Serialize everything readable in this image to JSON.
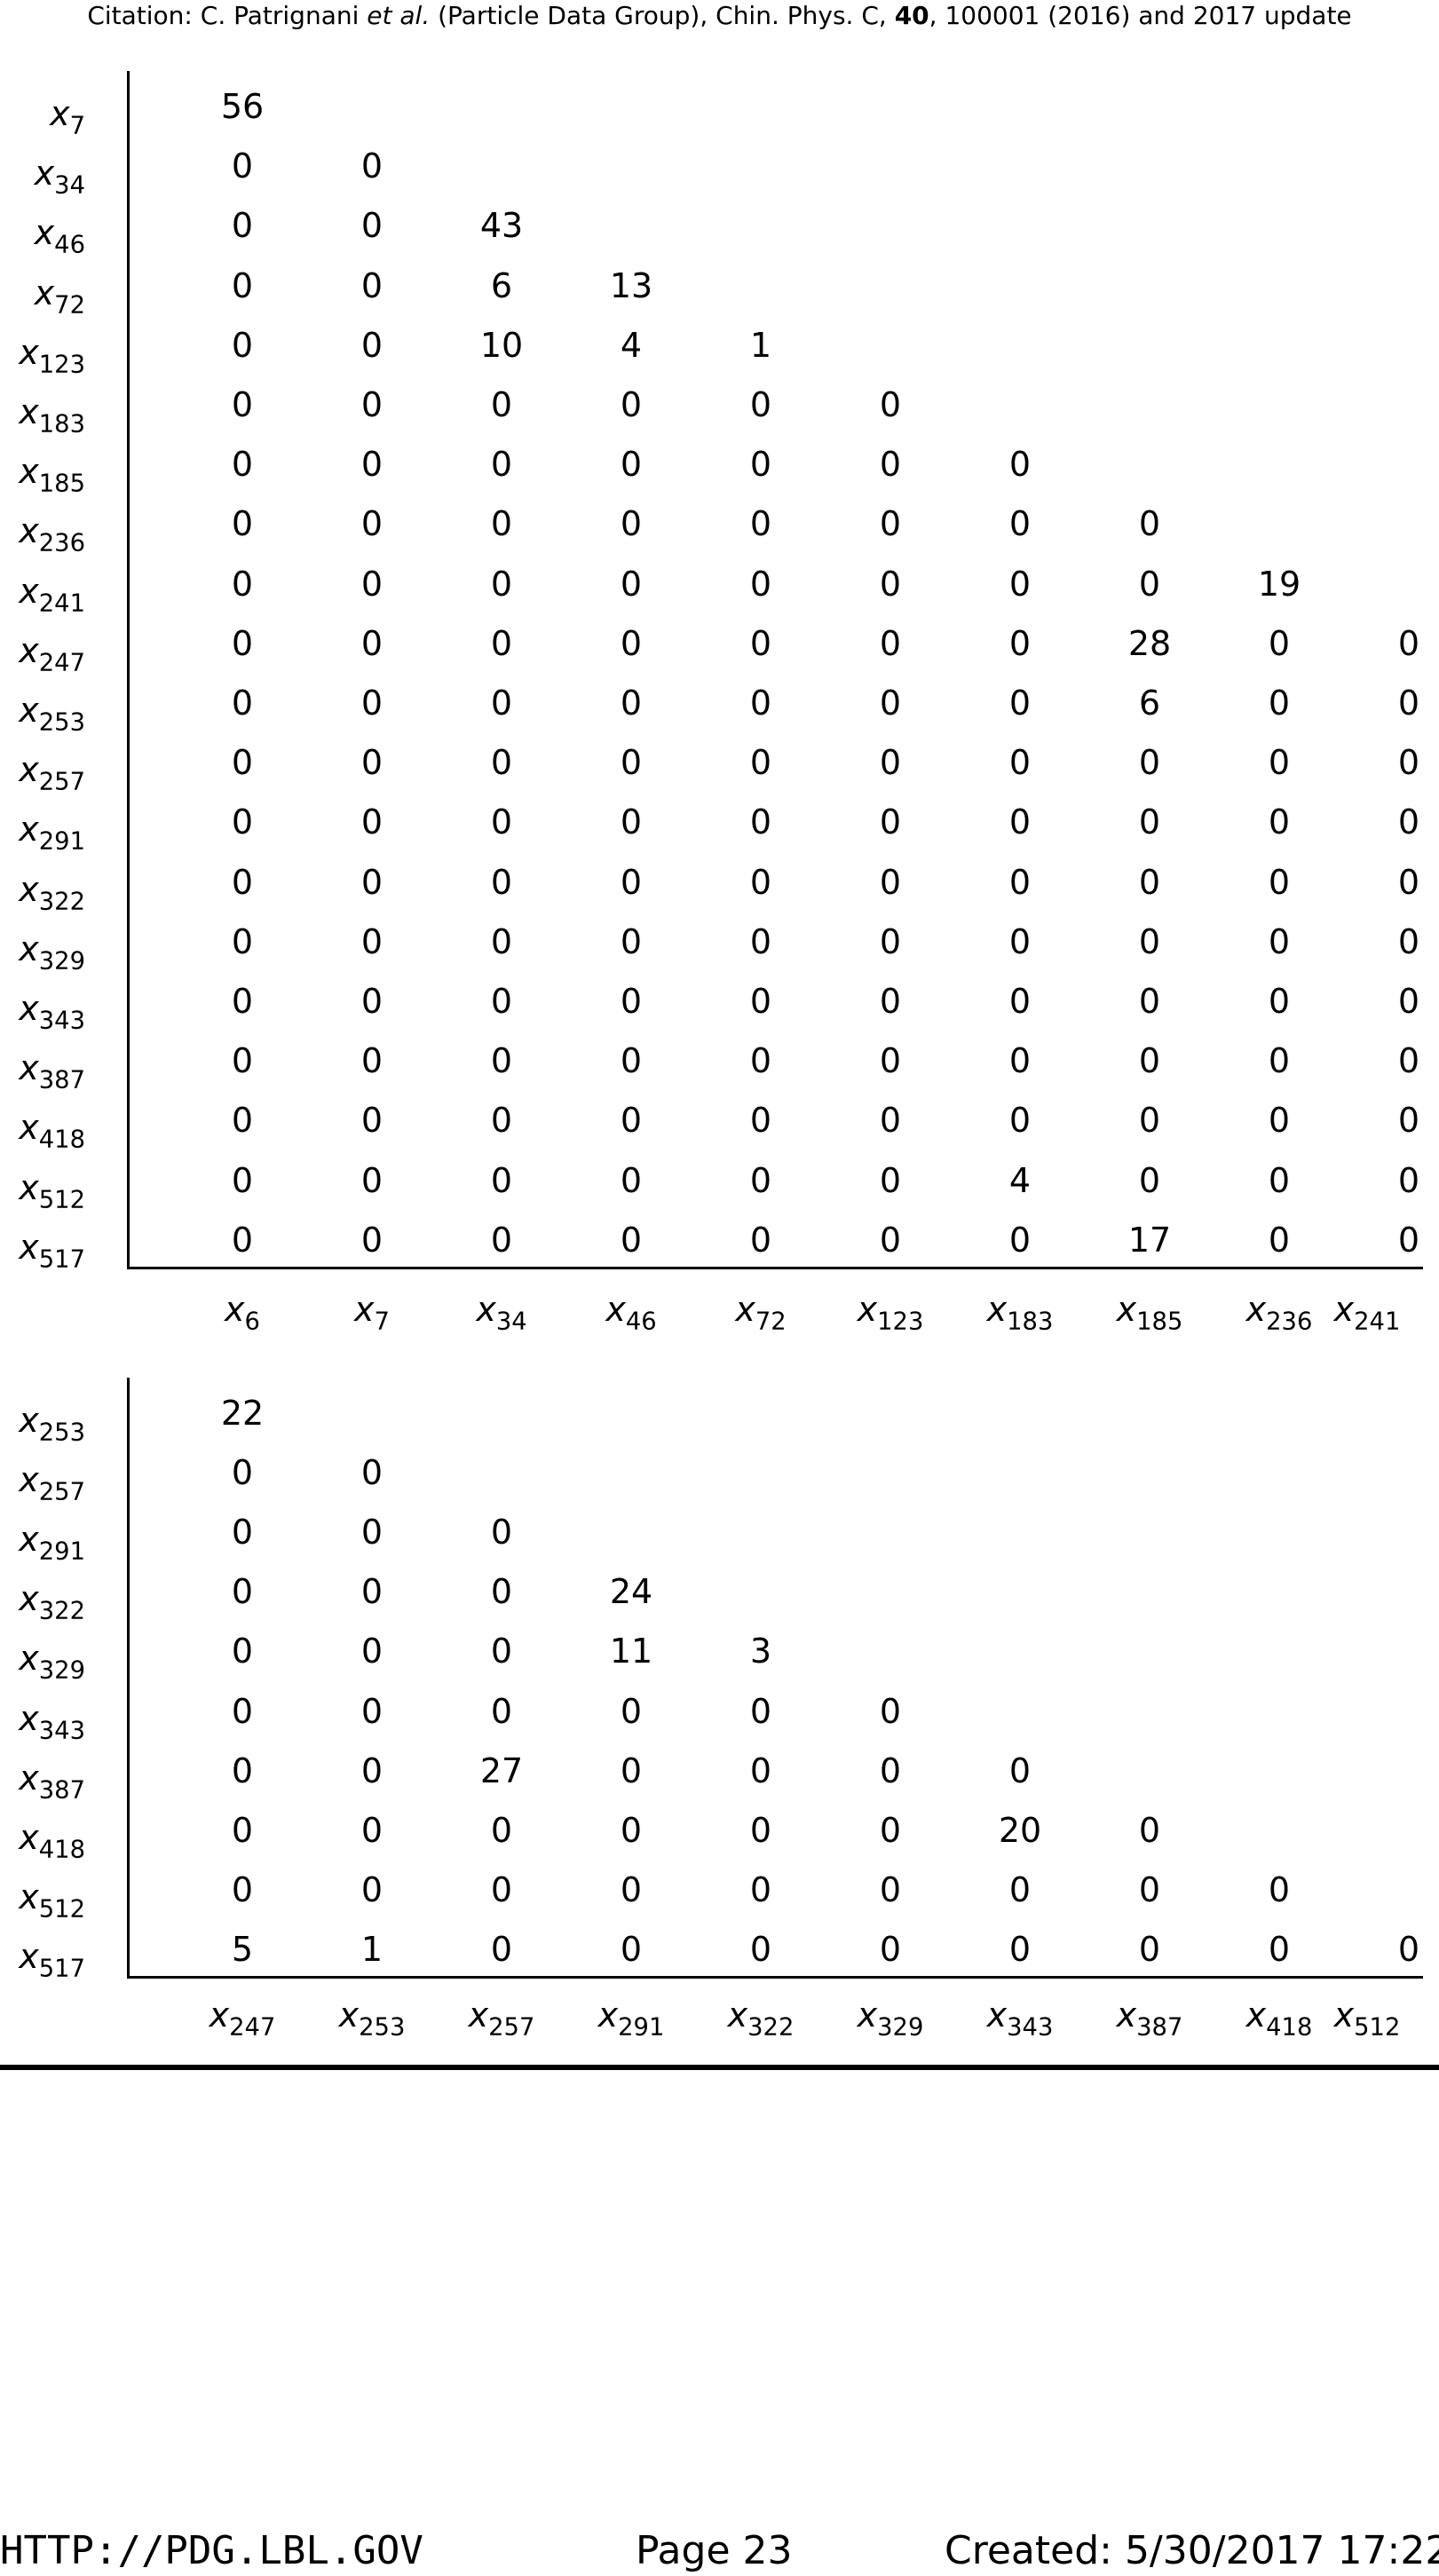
{
  "header": {
    "citation_prefix": "Citation: C. Patrignani ",
    "citation_et_al": "et al.",
    "citation_mid": " (Particle Data Group), Chin. Phys. C, ",
    "citation_volume": "40",
    "citation_suffix": ", 100001 (2016) and 2017 update"
  },
  "matrices": [
    {
      "rows": [
        {
          "label": "x",
          "sub": "7",
          "values": [
            "56"
          ]
        },
        {
          "label": "x",
          "sub": "34",
          "values": [
            "0",
            "0"
          ]
        },
        {
          "label": "x",
          "sub": "46",
          "values": [
            "0",
            "0",
            "43"
          ]
        },
        {
          "label": "x",
          "sub": "72",
          "values": [
            "0",
            "0",
            "6",
            "13"
          ]
        },
        {
          "label": "x",
          "sub": "123",
          "values": [
            "0",
            "0",
            "10",
            "4",
            "1"
          ]
        },
        {
          "label": "x",
          "sub": "183",
          "values": [
            "0",
            "0",
            "0",
            "0",
            "0",
            "0"
          ]
        },
        {
          "label": "x",
          "sub": "185",
          "values": [
            "0",
            "0",
            "0",
            "0",
            "0",
            "0",
            "0"
          ]
        },
        {
          "label": "x",
          "sub": "236",
          "values": [
            "0",
            "0",
            "0",
            "0",
            "0",
            "0",
            "0",
            "0"
          ]
        },
        {
          "label": "x",
          "sub": "241",
          "values": [
            "0",
            "0",
            "0",
            "0",
            "0",
            "0",
            "0",
            "0",
            "19"
          ]
        },
        {
          "label": "x",
          "sub": "247",
          "values": [
            "0",
            "0",
            "0",
            "0",
            "0",
            "0",
            "0",
            "28",
            "0",
            "0"
          ]
        },
        {
          "label": "x",
          "sub": "253",
          "values": [
            "0",
            "0",
            "0",
            "0",
            "0",
            "0",
            "0",
            "6",
            "0",
            "0"
          ]
        },
        {
          "label": "x",
          "sub": "257",
          "values": [
            "0",
            "0",
            "0",
            "0",
            "0",
            "0",
            "0",
            "0",
            "0",
            "0"
          ]
        },
        {
          "label": "x",
          "sub": "291",
          "values": [
            "0",
            "0",
            "0",
            "0",
            "0",
            "0",
            "0",
            "0",
            "0",
            "0"
          ]
        },
        {
          "label": "x",
          "sub": "322",
          "values": [
            "0",
            "0",
            "0",
            "0",
            "0",
            "0",
            "0",
            "0",
            "0",
            "0"
          ]
        },
        {
          "label": "x",
          "sub": "329",
          "values": [
            "0",
            "0",
            "0",
            "0",
            "0",
            "0",
            "0",
            "0",
            "0",
            "0"
          ]
        },
        {
          "label": "x",
          "sub": "343",
          "values": [
            "0",
            "0",
            "0",
            "0",
            "0",
            "0",
            "0",
            "0",
            "0",
            "0"
          ]
        },
        {
          "label": "x",
          "sub": "387",
          "values": [
            "0",
            "0",
            "0",
            "0",
            "0",
            "0",
            "0",
            "0",
            "0",
            "0"
          ]
        },
        {
          "label": "x",
          "sub": "418",
          "values": [
            "0",
            "0",
            "0",
            "0",
            "0",
            "0",
            "0",
            "0",
            "0",
            "0"
          ]
        },
        {
          "label": "x",
          "sub": "512",
          "values": [
            "0",
            "0",
            "0",
            "0",
            "0",
            "0",
            "4",
            "0",
            "0",
            "0"
          ]
        },
        {
          "label": "x",
          "sub": "517",
          "values": [
            "0",
            "0",
            "0",
            "0",
            "0",
            "0",
            "0",
            "17",
            "0",
            "0"
          ]
        }
      ],
      "columns": [
        {
          "label": "x",
          "sub": "6"
        },
        {
          "label": "x",
          "sub": "7"
        },
        {
          "label": "x",
          "sub": "34"
        },
        {
          "label": "x",
          "sub": "46"
        },
        {
          "label": "x",
          "sub": "72"
        },
        {
          "label": "x",
          "sub": "123"
        },
        {
          "label": "x",
          "sub": "183"
        },
        {
          "label": "x",
          "sub": "185"
        },
        {
          "label": "x",
          "sub": "236"
        },
        {
          "label": "x",
          "sub": "241"
        }
      ]
    },
    {
      "rows": [
        {
          "label": "x",
          "sub": "253",
          "values": [
            "22"
          ]
        },
        {
          "label": "x",
          "sub": "257",
          "values": [
            "0",
            "0"
          ]
        },
        {
          "label": "x",
          "sub": "291",
          "values": [
            "0",
            "0",
            "0"
          ]
        },
        {
          "label": "x",
          "sub": "322",
          "values": [
            "0",
            "0",
            "0",
            "24"
          ]
        },
        {
          "label": "x",
          "sub": "329",
          "values": [
            "0",
            "0",
            "0",
            "11",
            "3"
          ]
        },
        {
          "label": "x",
          "sub": "343",
          "values": [
            "0",
            "0",
            "0",
            "0",
            "0",
            "0"
          ]
        },
        {
          "label": "x",
          "sub": "387",
          "values": [
            "0",
            "0",
            "27",
            "0",
            "0",
            "0",
            "0"
          ]
        },
        {
          "label": "x",
          "sub": "418",
          "values": [
            "0",
            "0",
            "0",
            "0",
            "0",
            "0",
            "20",
            "0"
          ]
        },
        {
          "label": "x",
          "sub": "512",
          "values": [
            "0",
            "0",
            "0",
            "0",
            "0",
            "0",
            "0",
            "0",
            "0"
          ]
        },
        {
          "label": "x",
          "sub": "517",
          "values": [
            "5",
            "1",
            "0",
            "0",
            "0",
            "0",
            "0",
            "0",
            "0",
            "0"
          ]
        }
      ],
      "columns": [
        {
          "label": "x",
          "sub": "247"
        },
        {
          "label": "x",
          "sub": "253"
        },
        {
          "label": "x",
          "sub": "257"
        },
        {
          "label": "x",
          "sub": "291"
        },
        {
          "label": "x",
          "sub": "322"
        },
        {
          "label": "x",
          "sub": "329"
        },
        {
          "label": "x",
          "sub": "343"
        },
        {
          "label": "x",
          "sub": "387"
        },
        {
          "label": "x",
          "sub": "418"
        },
        {
          "label": "x",
          "sub": "512"
        }
      ]
    }
  ],
  "footer": {
    "url": "HTTP://PDG.LBL.GOV",
    "page": "Page 23",
    "created": "Created: 5/30/2017 17:22"
  }
}
